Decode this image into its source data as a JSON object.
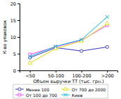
{
  "chart_data": {
    "type": "line",
    "categories": [
      "<50",
      "50-100",
      "100-200",
      ">200"
    ],
    "series": [
      {
        "name": "Менее 100",
        "values": [
          3.8,
          6.8,
          5.8,
          7.0
        ],
        "color": "#3333bb",
        "marker": "circle",
        "line_style": "solid"
      },
      {
        "name": "От 100 до 700",
        "values": [
          4.8,
          7.0,
          9.0,
          13.5
        ],
        "color": "#ff44ff",
        "marker": "square",
        "line_style": "solid"
      },
      {
        "name": "От 700 до 2000",
        "values": [
          2.2,
          6.5,
          8.8,
          14.0
        ],
        "color": "#dddd00",
        "marker": "triangle",
        "line_style": "solid"
      },
      {
        "name": "Киев",
        "values": [
          4.2,
          7.2,
          9.2,
          16.0
        ],
        "color": "#00bbdd",
        "marker": "x",
        "line_style": "solid"
      }
    ],
    "ylim": [
      0,
      20
    ],
    "yticks": [
      0,
      5,
      10,
      15,
      20
    ],
    "ylabel": "К-во упаковок",
    "xlabel": "Объем выручки ТТ (тыс. грн.)",
    "grid": false,
    "legend": "bottom"
  }
}
